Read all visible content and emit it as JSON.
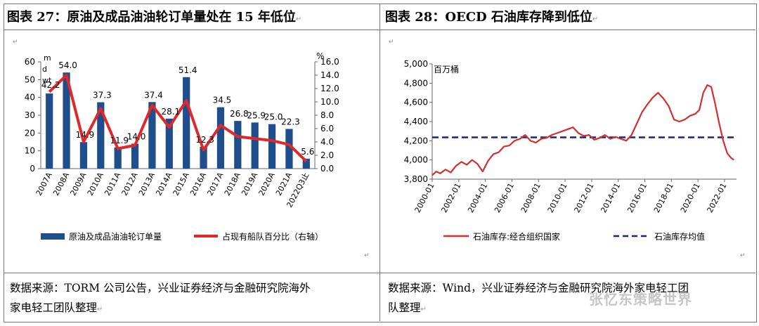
{
  "left_panel": {
    "title": "图表 27：原油及成品油油轮订单量处在 15 年低位",
    "source_line1": "数据来源：TORM 公司公告，兴业证券经济与金融研究院海外",
    "source_line2": "家电轻工团队整理"
  },
  "right_panel": {
    "title": "图表 28：OECD 石油库存降到低位",
    "source_line1": "数据来源：Wind，兴业证券经济与金融研究院海外家电轻工团",
    "source_line2": "队整理"
  },
  "watermark": "张忆东策略世界",
  "chart_data": [
    {
      "type": "bar+line",
      "title": "图表 27：原油及成品油油轮订单量处在 15 年低位",
      "left_unit": "m dwt",
      "right_unit": "%",
      "categories": [
        "2007A",
        "2008A",
        "2009A",
        "2010A",
        "2011A",
        "2012A",
        "2013A",
        "2014A",
        "2015A",
        "2016A",
        "2017A",
        "2018A",
        "2019A",
        "2020A",
        "2021A",
        "2022Q3止"
      ],
      "series": [
        {
          "name": "原油及成品油油轮订单量",
          "axis": "left",
          "color": "#1f4e8c",
          "values": [
            42.2,
            54.0,
            14.9,
            37.3,
            11.9,
            14.0,
            37.4,
            28.1,
            51.4,
            12.3,
            34.5,
            26.8,
            25.9,
            25.0,
            22.3,
            5.6
          ]
        },
        {
          "name": "占现有船队百分比（右轴）",
          "axis": "right",
          "color": "#e0282a",
          "values": [
            11.5,
            14.0,
            4.0,
            9.0,
            3.0,
            3.5,
            9.5,
            6.2,
            10.2,
            2.8,
            6.5,
            4.8,
            4.5,
            4.2,
            3.6,
            1.1
          ]
        }
      ],
      "y_left": {
        "min": 0,
        "max": 60,
        "step": 10,
        "ticks": [
          "0",
          "10",
          "20",
          "30",
          "40",
          "50",
          "60"
        ]
      },
      "y_right": {
        "min": 0,
        "max": 16,
        "step": 2,
        "ticks": [
          "0.0",
          "2.0",
          "4.0",
          "6.0",
          "8.0",
          "10.0",
          "12.0",
          "14.0",
          "16.0"
        ]
      },
      "legend_position": "bottom"
    },
    {
      "type": "line",
      "title": "图表 28：OECD 石油库存降到低位",
      "ylabel": "百万桶",
      "x_ticks": [
        "2000-01",
        "2002-01",
        "2004-01",
        "2006-01",
        "2008-01",
        "2010-01",
        "2012-01",
        "2014-01",
        "2016-01",
        "2018-01",
        "2020-01",
        "2022-01"
      ],
      "y_axis": {
        "min": 3800,
        "max": 5000,
        "step": 200,
        "ticks": [
          "3,800",
          "4,000",
          "4,200",
          "4,400",
          "4,600",
          "4,800",
          "5,000"
        ]
      },
      "series": [
        {
          "name": "石油库存:经合组织国家",
          "color": "#d32f2f",
          "style": "solid",
          "x": [
            2000.0,
            2000.3,
            2000.6,
            2001.0,
            2001.4,
            2001.8,
            2002.2,
            2002.6,
            2003.0,
            2003.4,
            2003.8,
            2004.2,
            2004.6,
            2005.0,
            2005.4,
            2005.8,
            2006.2,
            2006.6,
            2007.0,
            2007.4,
            2007.8,
            2008.2,
            2008.6,
            2009.0,
            2009.4,
            2009.8,
            2010.2,
            2010.6,
            2011.0,
            2011.4,
            2011.8,
            2012.2,
            2012.6,
            2013.0,
            2013.4,
            2013.8,
            2014.2,
            2014.6,
            2015.0,
            2015.4,
            2015.8,
            2016.2,
            2016.6,
            2017.0,
            2017.4,
            2017.8,
            2018.2,
            2018.6,
            2019.0,
            2019.4,
            2019.8,
            2020.1,
            2020.4,
            2020.7,
            2021.0,
            2021.3,
            2021.6,
            2021.9,
            2022.2,
            2022.5,
            2022.7
          ],
          "y": [
            3840,
            3880,
            3860,
            3900,
            3870,
            3940,
            3980,
            3950,
            4000,
            3960,
            3880,
            3990,
            4060,
            4080,
            4140,
            4150,
            4200,
            4220,
            4260,
            4200,
            4180,
            4220,
            4230,
            4260,
            4280,
            4300,
            4320,
            4340,
            4280,
            4250,
            4260,
            4210,
            4230,
            4260,
            4220,
            4240,
            4220,
            4200,
            4260,
            4380,
            4500,
            4580,
            4650,
            4700,
            4640,
            4560,
            4420,
            4400,
            4420,
            4460,
            4480,
            4520,
            4700,
            4780,
            4760,
            4580,
            4380,
            4200,
            4070,
            4020,
            4000
          ]
        },
        {
          "name": "石油库存均值",
          "color": "#1a237e",
          "style": "dashed",
          "value": 4235
        }
      ],
      "legend_position": "bottom"
    }
  ]
}
